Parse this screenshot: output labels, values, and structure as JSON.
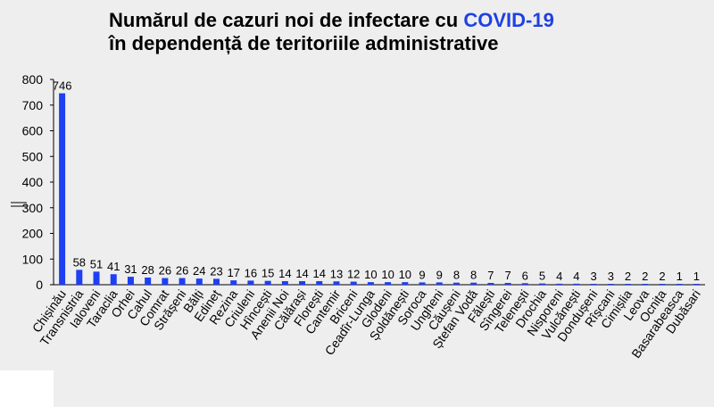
{
  "title": {
    "line1_prefix": "Numărul de cazuri noi de infectare cu ",
    "line1_accent": "COVID-19",
    "line2": "în dependență de teritoriile administrative"
  },
  "colors": {
    "bar": "#1f3ff2",
    "accent": "#2040e0",
    "background": "#eeeeee"
  },
  "chart_data": {
    "type": "bar",
    "categories": [
      "Chișinău",
      "Transnistria",
      "Ialoveni",
      "Taraclia",
      "Orhei",
      "Cahul",
      "Comrat",
      "Strășeni",
      "Bălți",
      "Edineț",
      "Rezina",
      "Criuleni",
      "Hîncești",
      "Anenii Noi",
      "Călărași",
      "Florești",
      "Cantemir",
      "Briceni",
      "Ceadîr-Lunga",
      "Glodeni",
      "Șoldănești",
      "Soroca",
      "Ungheni",
      "Căușeni",
      "Ștefan Vodă",
      "Fălești",
      "Sîngerei",
      "Telenești",
      "Drochia",
      "Nisporeni",
      "Vulcănești",
      "Dondușeni",
      "Rîșcani",
      "Cimișlia",
      "Leova",
      "Ocnița",
      "Basarabeasca",
      "Dubăsari"
    ],
    "values": [
      746,
      58,
      51,
      41,
      31,
      28,
      26,
      26,
      24,
      23,
      17,
      16,
      15,
      14,
      14,
      14,
      13,
      12,
      10,
      10,
      10,
      9,
      9,
      8,
      8,
      7,
      7,
      6,
      5,
      4,
      4,
      3,
      3,
      2,
      2,
      2,
      1,
      1
    ],
    "ylim": [
      0,
      800
    ],
    "yticks": [
      0,
      100,
      200,
      300,
      400,
      500,
      600,
      700,
      800
    ],
    "grid": false,
    "legend": false,
    "title": "Numărul de cazuri noi de infectare cu COVID-19 în dependență de teritoriile administrative"
  }
}
